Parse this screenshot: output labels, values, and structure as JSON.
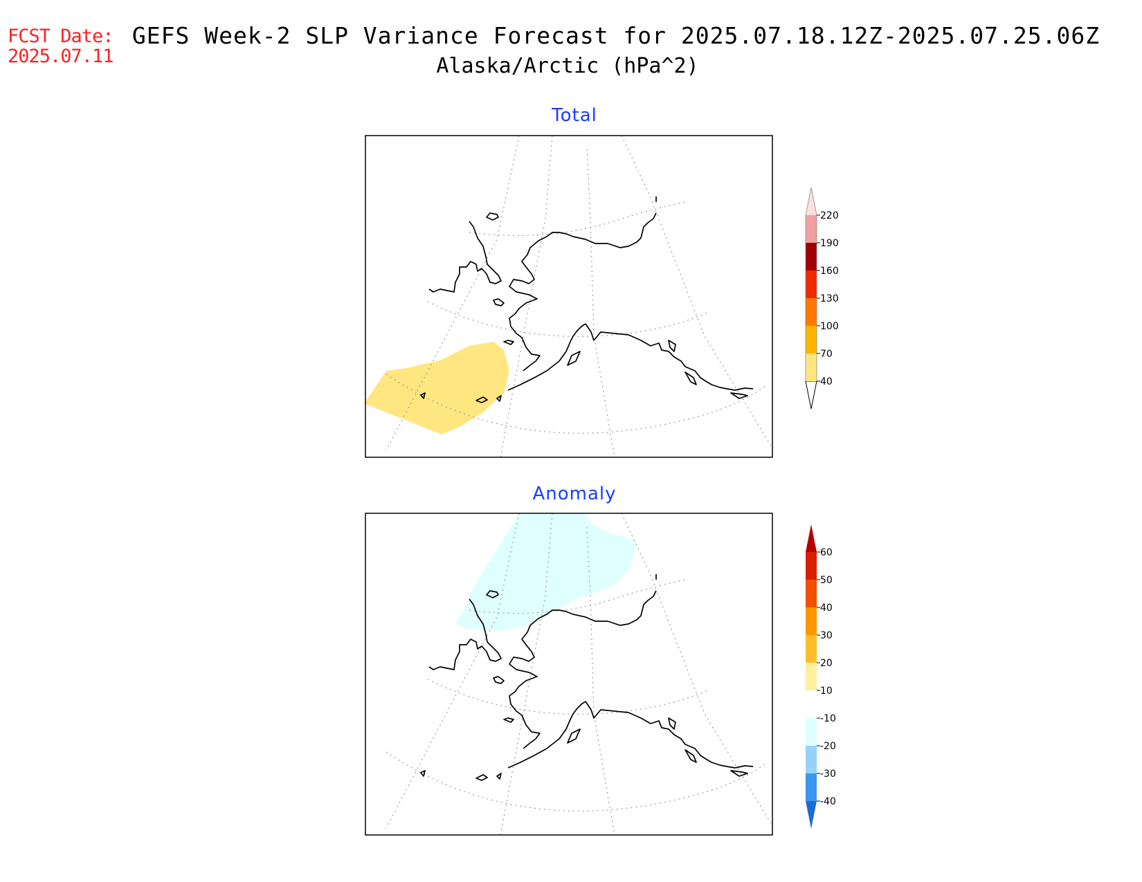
{
  "fcst_date_label": "FCST Date:",
  "fcst_date": "2025.07.11",
  "title": "GEFS Week-2 SLP Variance Forecast for 2025.07.18.12Z-2025.07.25.06Z",
  "subtitle": "Alaska/Arctic (hPa^2)",
  "panels": [
    {
      "title": "Total",
      "colorbar": {
        "levels": [
          "40",
          "70",
          "100",
          "130",
          "160",
          "190",
          "220"
        ],
        "colors": [
          "#ffe680",
          "#ffb400",
          "#ff7800",
          "#f02800",
          "#a00000",
          "#f0a0a0",
          "#ffe0e0"
        ]
      },
      "shaded_region": {
        "color": "#ffe680",
        "category": "40-70"
      }
    },
    {
      "title": "Anomaly",
      "colorbar": {
        "levels": [
          "60",
          "50",
          "40",
          "30",
          "20",
          "10",
          "-10",
          "-20",
          "-30",
          "-40"
        ],
        "colors": [
          "#b40000",
          "#dc1e00",
          "#f05000",
          "#ff9600",
          "#ffbe28",
          "#fff0a0",
          "#ffffff",
          "#e0ffff",
          "#96d2fa",
          "#3c96f0",
          "#1e6ed2"
        ]
      },
      "shaded_region": {
        "color": "#e0ffff",
        "category": "-10 to -20"
      }
    }
  ]
}
